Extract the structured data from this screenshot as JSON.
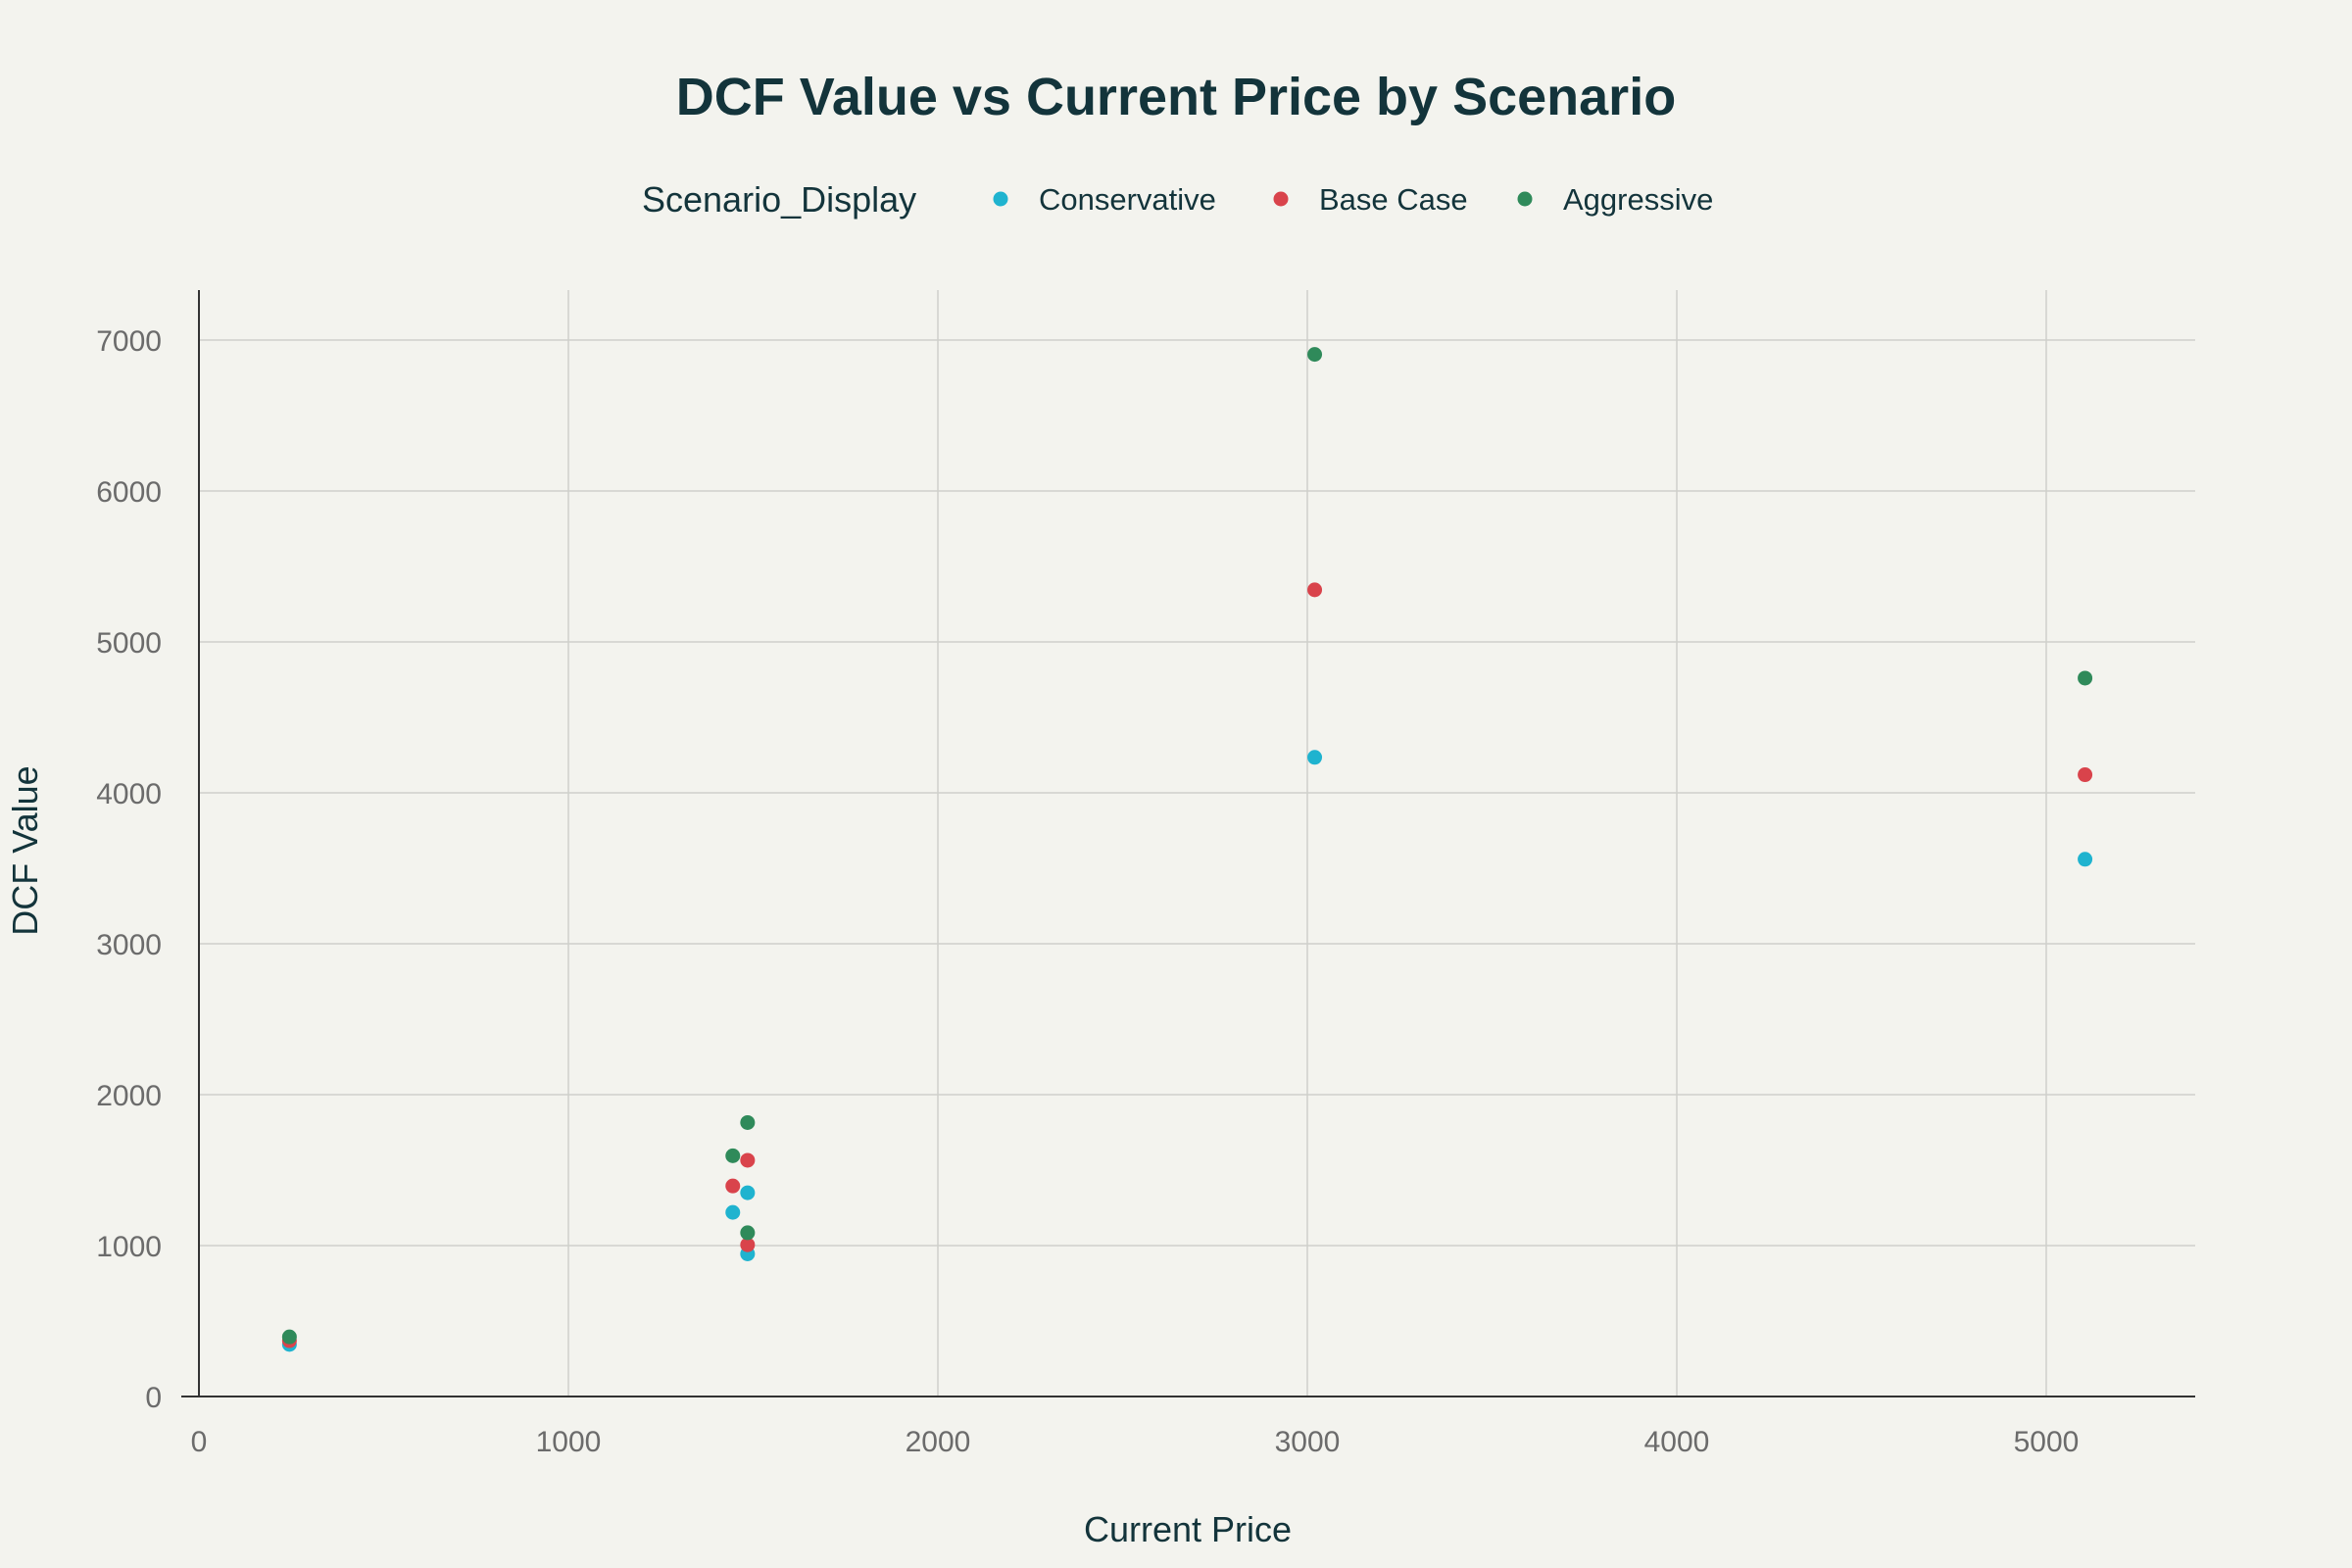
{
  "chart_data": {
    "type": "scatter",
    "title": "DCF Value vs Current Price by Scenario",
    "xlabel": "Current Price",
    "ylabel": "DCF Value",
    "xlim": [
      0,
      5400
    ],
    "ylim": [
      0,
      7350
    ],
    "xticks": [
      0,
      1000,
      2000,
      3000,
      4000,
      5000
    ],
    "yticks": [
      0,
      1000,
      2000,
      3000,
      4000,
      5000,
      6000,
      7000
    ],
    "grid": true,
    "legend": {
      "title": "Scenario_Display",
      "placement": "top-center"
    },
    "series": [
      {
        "name": "Conservative",
        "color": "#1fb3cf",
        "points": [
          {
            "x": 245,
            "y": 345
          },
          {
            "x": 1445,
            "y": 1220
          },
          {
            "x": 1485,
            "y": 1350
          },
          {
            "x": 1485,
            "y": 945
          },
          {
            "x": 3020,
            "y": 4235
          },
          {
            "x": 5105,
            "y": 3560
          }
        ]
      },
      {
        "name": "Base Case",
        "color": "#d9434b",
        "points": [
          {
            "x": 245,
            "y": 370
          },
          {
            "x": 1445,
            "y": 1395
          },
          {
            "x": 1485,
            "y": 1565
          },
          {
            "x": 1485,
            "y": 1005
          },
          {
            "x": 3020,
            "y": 5345
          },
          {
            "x": 5105,
            "y": 4120
          }
        ]
      },
      {
        "name": "Aggressive",
        "color": "#2f8a5a",
        "points": [
          {
            "x": 245,
            "y": 395
          },
          {
            "x": 1445,
            "y": 1595
          },
          {
            "x": 1485,
            "y": 1815
          },
          {
            "x": 1485,
            "y": 1085
          },
          {
            "x": 3020,
            "y": 6905
          },
          {
            "x": 5105,
            "y": 4760
          }
        ]
      }
    ]
  }
}
